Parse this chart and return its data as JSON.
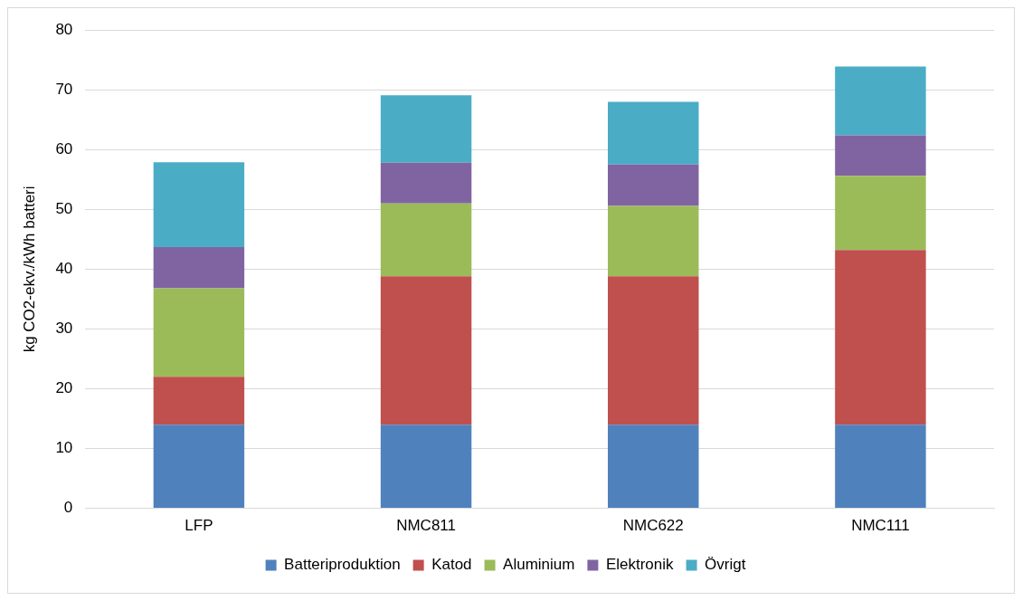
{
  "chart_data": {
    "type": "bar",
    "stacked": true,
    "ylabel": "kg CO2-ekv./kWh batteri",
    "categories": [
      "LFP",
      "NMC811",
      "NMC622",
      "NMC111"
    ],
    "series": [
      {
        "name": "Batteriproduktion",
        "color": "#4f81bd",
        "values": [
          14,
          14,
          14,
          14
        ]
      },
      {
        "name": "Katod",
        "color": "#c0504d",
        "values": [
          8,
          24.8,
          24.8,
          29.2
        ]
      },
      {
        "name": "Aluminium",
        "color": "#9bbb59",
        "values": [
          14.8,
          12.2,
          11.8,
          12.4
        ]
      },
      {
        "name": "Elektronik",
        "color": "#8064a2",
        "values": [
          6.9,
          6.8,
          6.9,
          6.8
        ]
      },
      {
        "name": "Övrigt",
        "color": "#4bacc6",
        "values": [
          14.2,
          11.3,
          10.5,
          11.5
        ]
      }
    ],
    "ylim": [
      0,
      80
    ],
    "yticks": [
      0,
      10,
      20,
      30,
      40,
      50,
      60,
      70,
      80
    ],
    "grid": "y",
    "legend": "bottom"
  }
}
